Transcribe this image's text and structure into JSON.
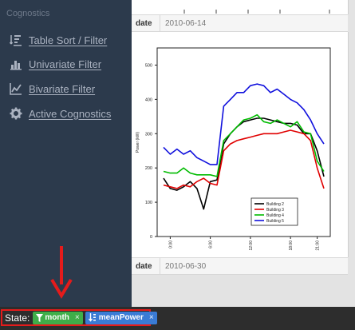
{
  "sidebar": {
    "heading": "Cognostics",
    "items": [
      {
        "label": "Table Sort / Filter",
        "icon": "table-sort-icon"
      },
      {
        "label": "Univariate Filter",
        "icon": "bar-chart-icon"
      },
      {
        "label": "Bivariate Filter",
        "icon": "line-chart-icon"
      },
      {
        "label": "Active Cognostics",
        "icon": "gear-icon"
      }
    ]
  },
  "panels": [
    {
      "key": "date",
      "value": "2010-06-14"
    },
    {
      "key": "date",
      "value": "2010-06-30"
    }
  ],
  "state": {
    "label": "State:",
    "chips": [
      {
        "label": "month",
        "icon": "filter-icon",
        "color": "#3fae49"
      },
      {
        "label": "meanPower",
        "icon": "sort-icon",
        "color": "#3a7bd5"
      }
    ],
    "close_glyph": "×"
  },
  "chart_data": {
    "type": "line",
    "ylabel": "Power (kW)",
    "ylim": [
      0,
      550
    ],
    "yticks": [
      0,
      100,
      200,
      300,
      400,
      500
    ],
    "xticks": [
      "0:00",
      "6:00",
      "12:00",
      "18:00",
      "21:00"
    ],
    "x": [
      0,
      1,
      2,
      3,
      4,
      5,
      6,
      7,
      8,
      9,
      10,
      11,
      12,
      13,
      14,
      15,
      16,
      17,
      18,
      19,
      20,
      21,
      22,
      23,
      24
    ],
    "legend_position": "bottom-right",
    "series": [
      {
        "name": "Building 2",
        "color": "#000000",
        "values": [
          170,
          140,
          135,
          145,
          160,
          140,
          80,
          160,
          165,
          270,
          300,
          320,
          335,
          340,
          345,
          345,
          340,
          335,
          330,
          330,
          325,
          300,
          300,
          250,
          175
        ]
      },
      {
        "name": "Building 3",
        "color": "#e00000",
        "values": [
          150,
          145,
          140,
          150,
          145,
          160,
          170,
          155,
          150,
          250,
          270,
          280,
          285,
          290,
          295,
          300,
          300,
          300,
          305,
          310,
          305,
          300,
          280,
          200,
          140
        ]
      },
      {
        "name": "Building 4",
        "color": "#00bb00",
        "values": [
          190,
          185,
          185,
          200,
          185,
          180,
          180,
          180,
          175,
          280,
          300,
          320,
          340,
          345,
          355,
          335,
          330,
          340,
          330,
          320,
          335,
          305,
          300,
          220,
          190
        ]
      },
      {
        "name": "Building 5",
        "color": "#1010dd",
        "values": [
          260,
          240,
          255,
          240,
          250,
          230,
          220,
          210,
          210,
          380,
          400,
          420,
          420,
          440,
          445,
          440,
          420,
          430,
          415,
          400,
          390,
          370,
          340,
          300,
          270
        ]
      }
    ]
  }
}
